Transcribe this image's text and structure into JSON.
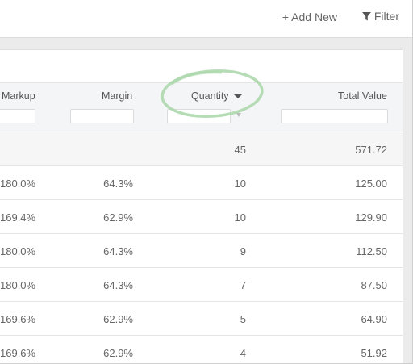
{
  "toolbar": {
    "add_new": "+ Add New",
    "filter": "Filter"
  },
  "table": {
    "columns": {
      "markup": "Markup",
      "margin": "Margin",
      "quantity": "Quantity",
      "total_value": "Total Value"
    },
    "sort": {
      "column": "quantity",
      "direction": "descending"
    },
    "total_row": {
      "quantity": "45",
      "total_value": "571.72"
    },
    "rows": [
      {
        "markup": "180.0%",
        "margin": "64.3%",
        "quantity": "10",
        "total_value": "125.00"
      },
      {
        "markup": "169.4%",
        "margin": "62.9%",
        "quantity": "10",
        "total_value": "129.90"
      },
      {
        "markup": "180.0%",
        "margin": "64.3%",
        "quantity": "9",
        "total_value": "112.50"
      },
      {
        "markup": "180.0%",
        "margin": "64.3%",
        "quantity": "7",
        "total_value": "87.50"
      },
      {
        "markup": "169.6%",
        "margin": "62.9%",
        "quantity": "5",
        "total_value": "64.90"
      },
      {
        "markup": "169.6%",
        "margin": "62.9%",
        "quantity": "4",
        "total_value": "51.92"
      }
    ]
  },
  "colors": {
    "highlight_ring": "#9fd0a0",
    "header_bg": "#f4f5f7",
    "text": "#555555"
  }
}
